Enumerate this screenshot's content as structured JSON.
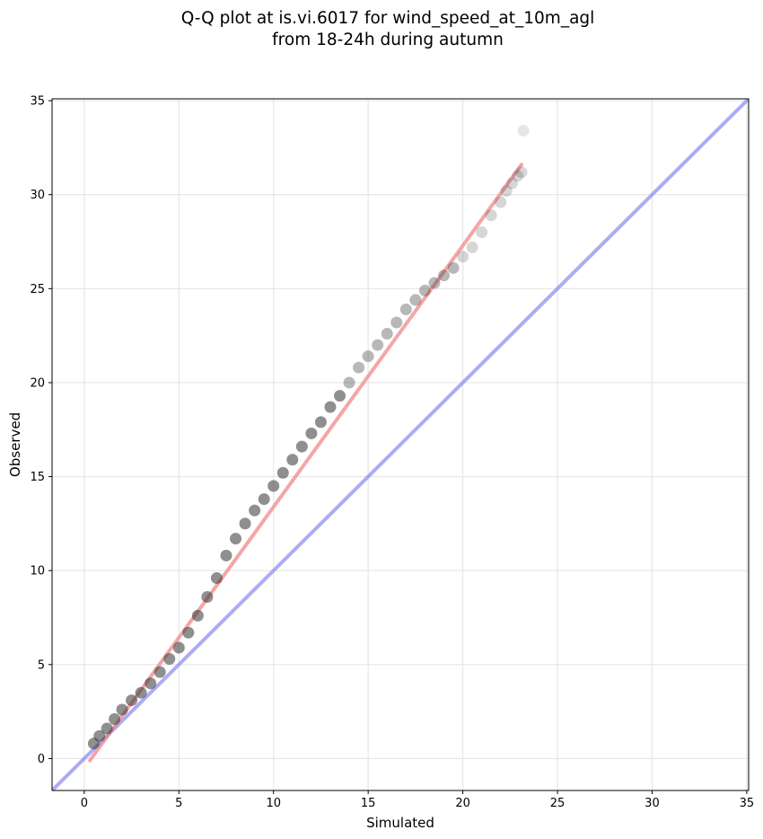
{
  "chart_data": {
    "type": "scatter",
    "title_line1": "Q-Q plot at is.vi.6017 for wind_speed_at_10m_agl",
    "title_line2": "from 18-24h during autumn",
    "xlabel": "Simulated",
    "ylabel": "Observed",
    "xlim": [
      -1.7,
      35.1
    ],
    "ylim": [
      -1.7,
      35.1
    ],
    "xticks": [
      0,
      5,
      10,
      15,
      20,
      25,
      30,
      35
    ],
    "yticks": [
      0,
      5,
      10,
      15,
      20,
      25,
      30,
      35
    ],
    "grid": true,
    "colors": {
      "points": "#333333",
      "fit_line": "#f08080",
      "identity_line": "#8080f0",
      "grid": "#e6e6e6"
    },
    "series": [
      {
        "type": "scatter",
        "x": [
          0.5,
          0.8,
          1.2,
          1.6,
          2.0,
          2.5,
          3.0,
          3.5,
          4.0,
          4.5,
          5.0,
          5.5,
          6.0,
          6.5,
          7.0,
          7.5,
          8.0,
          8.5,
          9.0,
          9.5,
          10.0,
          10.5,
          11.0,
          11.5,
          12.0,
          12.5,
          13.0,
          13.5,
          14.0,
          14.5,
          15.0,
          15.5,
          16.0,
          16.5,
          17.0,
          17.5,
          18.0,
          18.5,
          19.0,
          19.5,
          20.0,
          20.5,
          21.0,
          21.5,
          22.0,
          22.3,
          22.6,
          22.9,
          23.1,
          23.2
        ],
        "y": [
          0.8,
          1.2,
          1.6,
          2.1,
          2.6,
          3.1,
          3.5,
          4.0,
          4.6,
          5.3,
          5.9,
          6.7,
          7.6,
          8.6,
          9.6,
          10.8,
          11.7,
          12.5,
          13.2,
          13.8,
          14.5,
          15.2,
          15.9,
          16.6,
          17.3,
          17.9,
          18.7,
          19.3,
          20.0,
          20.8,
          21.4,
          22.0,
          22.6,
          23.2,
          23.9,
          24.4,
          24.9,
          25.3,
          25.7,
          26.1,
          26.7,
          27.2,
          28.0,
          28.9,
          29.6,
          30.2,
          30.6,
          31.0,
          31.2,
          33.4
        ]
      },
      {
        "type": "line",
        "x": [
          0.3,
          23.1
        ],
        "y": [
          -0.1,
          31.6
        ]
      },
      {
        "type": "line",
        "x": [
          -1.7,
          35.1
        ],
        "y": [
          -1.7,
          35.1
        ]
      }
    ]
  }
}
